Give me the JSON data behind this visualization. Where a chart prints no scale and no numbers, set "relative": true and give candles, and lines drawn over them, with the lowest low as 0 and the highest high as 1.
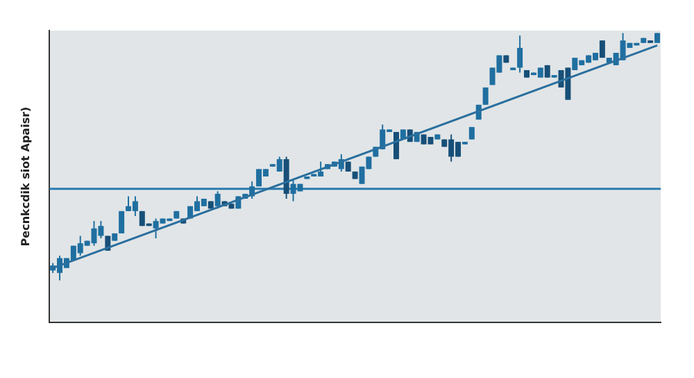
{
  "chart_data": {
    "type": "candlestick",
    "relative": true,
    "ylabel": "Pecnkcdik siot Apaisr)",
    "colors": [
      "#1f6fa0",
      "#1f6fa0",
      "#1f6fa0",
      "#1f6fa0",
      "#1f6fa0",
      "#1f6fa0",
      "#1f6fa0",
      "#1f6fa0",
      "#174f78",
      "#1f6fa0",
      "#1f6fa0",
      "#1f6fa0",
      "#1f6fa0",
      "#174f78",
      "#174f78",
      "#1f6fa0",
      "#1f6fa0",
      "#1f6fa0",
      "#1f6fa0",
      "#174f78",
      "#1f6fa0",
      "#1f6fa0",
      "#1f6fa0",
      "#174f78",
      "#1f6fa0",
      "#174f78",
      "#174f78",
      "#1f6fa0",
      "#1f6fa0",
      "#1f6fa0",
      "#1f6fa0",
      "#1f6fa0",
      "#1f6fa0",
      "#1f6fa0",
      "#174f78",
      "#1f6fa0",
      "#1f6fa0",
      "#1f6fa0",
      "#1f6fa0",
      "#1f6fa0",
      "#1f6fa0",
      "#1f6fa0",
      "#1f6fa0",
      "#174f78",
      "#174f78",
      "#1f6fa0",
      "#1f6fa0",
      "#1f6fa0",
      "#1f6fa0",
      "#1f6fa0",
      "#174f78",
      "#1f6fa0",
      "#174f78",
      "#1f6fa0",
      "#174f78",
      "#174f78",
      "#1f6fa0",
      "#174f78",
      "#174f78",
      "#174f78",
      "#1f6fa0",
      "#1f6fa0",
      "#1f6fa0",
      "#1f6fa0",
      "#1f6fa0",
      "#1f6fa0",
      "#174f78",
      "#1f6fa0",
      "#1f6fa0",
      "#174f78",
      "#1f6fa0",
      "#1f6fa0",
      "#174f78",
      "#1f6fa0",
      "#174f78",
      "#174f78",
      "#1f6fa0",
      "#1f6fa0",
      "#1f6fa0",
      "#1f6fa0",
      "#174f78",
      "#1f6fa0",
      "#1f6fa0",
      "#1f6fa0",
      "#1f6fa0",
      "#1f6fa0",
      "#1f6fa0",
      "#174f78",
      "#1f6fa0"
    ],
    "categories": [
      null,
      null,
      null,
      null,
      null,
      null,
      null,
      null,
      null,
      null,
      null,
      null,
      null,
      null,
      null,
      null,
      null,
      null,
      null,
      null,
      null,
      null,
      null,
      null,
      null,
      null,
      null,
      null,
      null,
      null,
      null,
      null,
      null,
      null,
      null,
      null,
      null,
      null,
      null,
      null,
      null,
      null,
      null,
      null,
      null,
      null,
      null,
      null,
      null,
      null,
      null,
      null,
      null,
      null,
      null,
      null,
      null,
      null,
      null,
      null,
      null,
      null,
      null,
      null,
      null,
      null,
      null,
      null,
      null,
      null,
      null,
      null,
      null,
      null,
      null,
      null,
      null,
      null,
      null,
      null,
      null,
      null,
      null,
      null,
      null,
      null,
      null,
      null,
      null
    ],
    "ohlc": [
      [
        0.04,
        0.07,
        0.03,
        0.06
      ],
      [
        0.03,
        0.1,
        0,
        0.09
      ],
      [
        0.05,
        0.09,
        0.05,
        0.09
      ],
      [
        0.08,
        0.14,
        0.08,
        0.14
      ],
      [
        0.11,
        0.18,
        0.1,
        0.15
      ],
      [
        0.14,
        0.16,
        0.14,
        0.16
      ],
      [
        0.15,
        0.24,
        0.14,
        0.21
      ],
      [
        0.18,
        0.24,
        0.17,
        0.22
      ],
      [
        0.18,
        0.18,
        0.12,
        0.12
      ],
      [
        0.16,
        0.19,
        0.16,
        0.19
      ],
      [
        0.19,
        0.28,
        0.19,
        0.28
      ],
      [
        0.28,
        0.34,
        0.28,
        0.3
      ],
      [
        0.28,
        0.34,
        0.26,
        0.32
      ],
      [
        0.28,
        0.28,
        0.22,
        0.22
      ],
      [
        0.23,
        0.23,
        0.22,
        0.22
      ],
      [
        0.21,
        0.25,
        0.17,
        0.24
      ],
      [
        0.23,
        0.25,
        0.23,
        0.25
      ],
      [
        0.24,
        0.25,
        0.24,
        0.25
      ],
      [
        0.25,
        0.28,
        0.25,
        0.28
      ],
      [
        0.25,
        0.25,
        0.23,
        0.23
      ],
      [
        0.25,
        0.3,
        0.25,
        0.3
      ],
      [
        0.28,
        0.34,
        0.28,
        0.32
      ],
      [
        0.3,
        0.33,
        0.3,
        0.33
      ],
      [
        0.32,
        0.32,
        0.29,
        0.29
      ],
      [
        0.3,
        0.36,
        0.29,
        0.35
      ],
      [
        0.32,
        0.32,
        0.3,
        0.3
      ],
      [
        0.31,
        0.31,
        0.29,
        0.29
      ],
      [
        0.29,
        0.34,
        0.29,
        0.34
      ],
      [
        0.33,
        0.35,
        0.33,
        0.35
      ],
      [
        0.34,
        0.4,
        0.33,
        0.38
      ],
      [
        0.38,
        0.45,
        0.38,
        0.45
      ],
      [
        0.42,
        0.45,
        0.42,
        0.45
      ],
      [
        0.46,
        0.47,
        0.46,
        0.47
      ],
      [
        0.44,
        0.5,
        0.44,
        0.49
      ],
      [
        0.49,
        0.5,
        0.33,
        0.35
      ],
      [
        0.35,
        0.41,
        0.32,
        0.39
      ],
      [
        0.36,
        0.39,
        0.36,
        0.39
      ],
      [
        0.41,
        0.42,
        0.41,
        0.42
      ],
      [
        0.42,
        0.43,
        0.42,
        0.43
      ],
      [
        0.42,
        0.48,
        0.42,
        0.44
      ],
      [
        0.45,
        0.47,
        0.45,
        0.47
      ],
      [
        0.46,
        0.48,
        0.46,
        0.48
      ],
      [
        0.45,
        0.51,
        0.44,
        0.49
      ],
      [
        0.48,
        0.48,
        0.44,
        0.44
      ],
      [
        0.44,
        0.44,
        0.41,
        0.41
      ],
      [
        0.39,
        0.46,
        0.39,
        0.46
      ],
      [
        0.45,
        0.5,
        0.45,
        0.5
      ],
      [
        0.5,
        0.54,
        0.5,
        0.54
      ],
      [
        0.53,
        0.63,
        0.53,
        0.61
      ],
      [
        0.6,
        0.61,
        0.6,
        0.61
      ],
      [
        0.6,
        0.6,
        0.49,
        0.49
      ],
      [
        0.57,
        0.61,
        0.57,
        0.61
      ],
      [
        0.61,
        0.61,
        0.56,
        0.56
      ],
      [
        0.56,
        0.6,
        0.56,
        0.6
      ],
      [
        0.59,
        0.59,
        0.55,
        0.55
      ],
      [
        0.58,
        0.58,
        0.55,
        0.55
      ],
      [
        0.57,
        0.59,
        0.57,
        0.59
      ],
      [
        0.57,
        0.57,
        0.54,
        0.54
      ],
      [
        0.57,
        0.59,
        0.48,
        0.5
      ],
      [
        0.56,
        0.56,
        0.5,
        0.5
      ],
      [
        0.55,
        0.56,
        0.55,
        0.56
      ],
      [
        0.57,
        0.62,
        0.57,
        0.62
      ],
      [
        0.65,
        0.71,
        0.65,
        0.71
      ],
      [
        0.71,
        0.78,
        0.71,
        0.78
      ],
      [
        0.79,
        0.86,
        0.79,
        0.86
      ],
      [
        0.84,
        0.91,
        0.84,
        0.91
      ],
      [
        0.91,
        0.91,
        0.88,
        0.88
      ],
      [
        0.85,
        0.86,
        0.85,
        0.86
      ],
      [
        0.86,
        0.99,
        0.84,
        0.94
      ],
      [
        0.85,
        0.85,
        0.82,
        0.82
      ],
      [
        0.83,
        0.84,
        0.83,
        0.84
      ],
      [
        0.82,
        0.86,
        0.82,
        0.86
      ],
      [
        0.87,
        0.87,
        0.82,
        0.82
      ],
      [
        0.82,
        0.83,
        0.82,
        0.83
      ],
      [
        0.85,
        0.85,
        0.78,
        0.78
      ],
      [
        0.86,
        0.86,
        0.73,
        0.73
      ],
      [
        0.85,
        0.9,
        0.85,
        0.9
      ],
      [
        0.87,
        0.89,
        0.87,
        0.89
      ],
      [
        0.88,
        0.91,
        0.88,
        0.91
      ],
      [
        0.89,
        0.92,
        0.89,
        0.92
      ],
      [
        0.97,
        0.97,
        0.9,
        0.9
      ],
      [
        0.88,
        0.9,
        0.88,
        0.9
      ],
      [
        0.87,
        0.92,
        0.87,
        0.92
      ],
      [
        0.89,
        1,
        0.89,
        0.97
      ],
      [
        0.94,
        0.96,
        0.94,
        0.96
      ],
      [
        0.95,
        0.96,
        0.95,
        0.96
      ],
      [
        0.96,
        0.98,
        0.96,
        0.98
      ],
      [
        0.97,
        0.97,
        0.96,
        0.96
      ],
      [
        0.96,
        1,
        0.96,
        1
      ]
    ],
    "series": [
      {
        "type": "line",
        "color": "#2a6f9e",
        "values": [
          0.05,
          null,
          null,
          null,
          null,
          null,
          null,
          null,
          null,
          null,
          null,
          null,
          null,
          null,
          null,
          null,
          null,
          null,
          null,
          null,
          null,
          null,
          null,
          null,
          null,
          null,
          null,
          null,
          null,
          null,
          null,
          null,
          null,
          null,
          null,
          null,
          null,
          null,
          null,
          null,
          null,
          null,
          null,
          null,
          null,
          null,
          null,
          null,
          null,
          null,
          null,
          null,
          null,
          null,
          null,
          null,
          null,
          null,
          null,
          null,
          null,
          null,
          null,
          null,
          null,
          null,
          null,
          null,
          null,
          null,
          null,
          null,
          null,
          null,
          null,
          null,
          null,
          null,
          null,
          null,
          null,
          null,
          null,
          null,
          null,
          null,
          null,
          null,
          0.95
        ]
      }
    ],
    "ref_lines": [
      {
        "axis": "y",
        "value": 0.37,
        "color": "#2a7ab0"
      }
    ]
  }
}
